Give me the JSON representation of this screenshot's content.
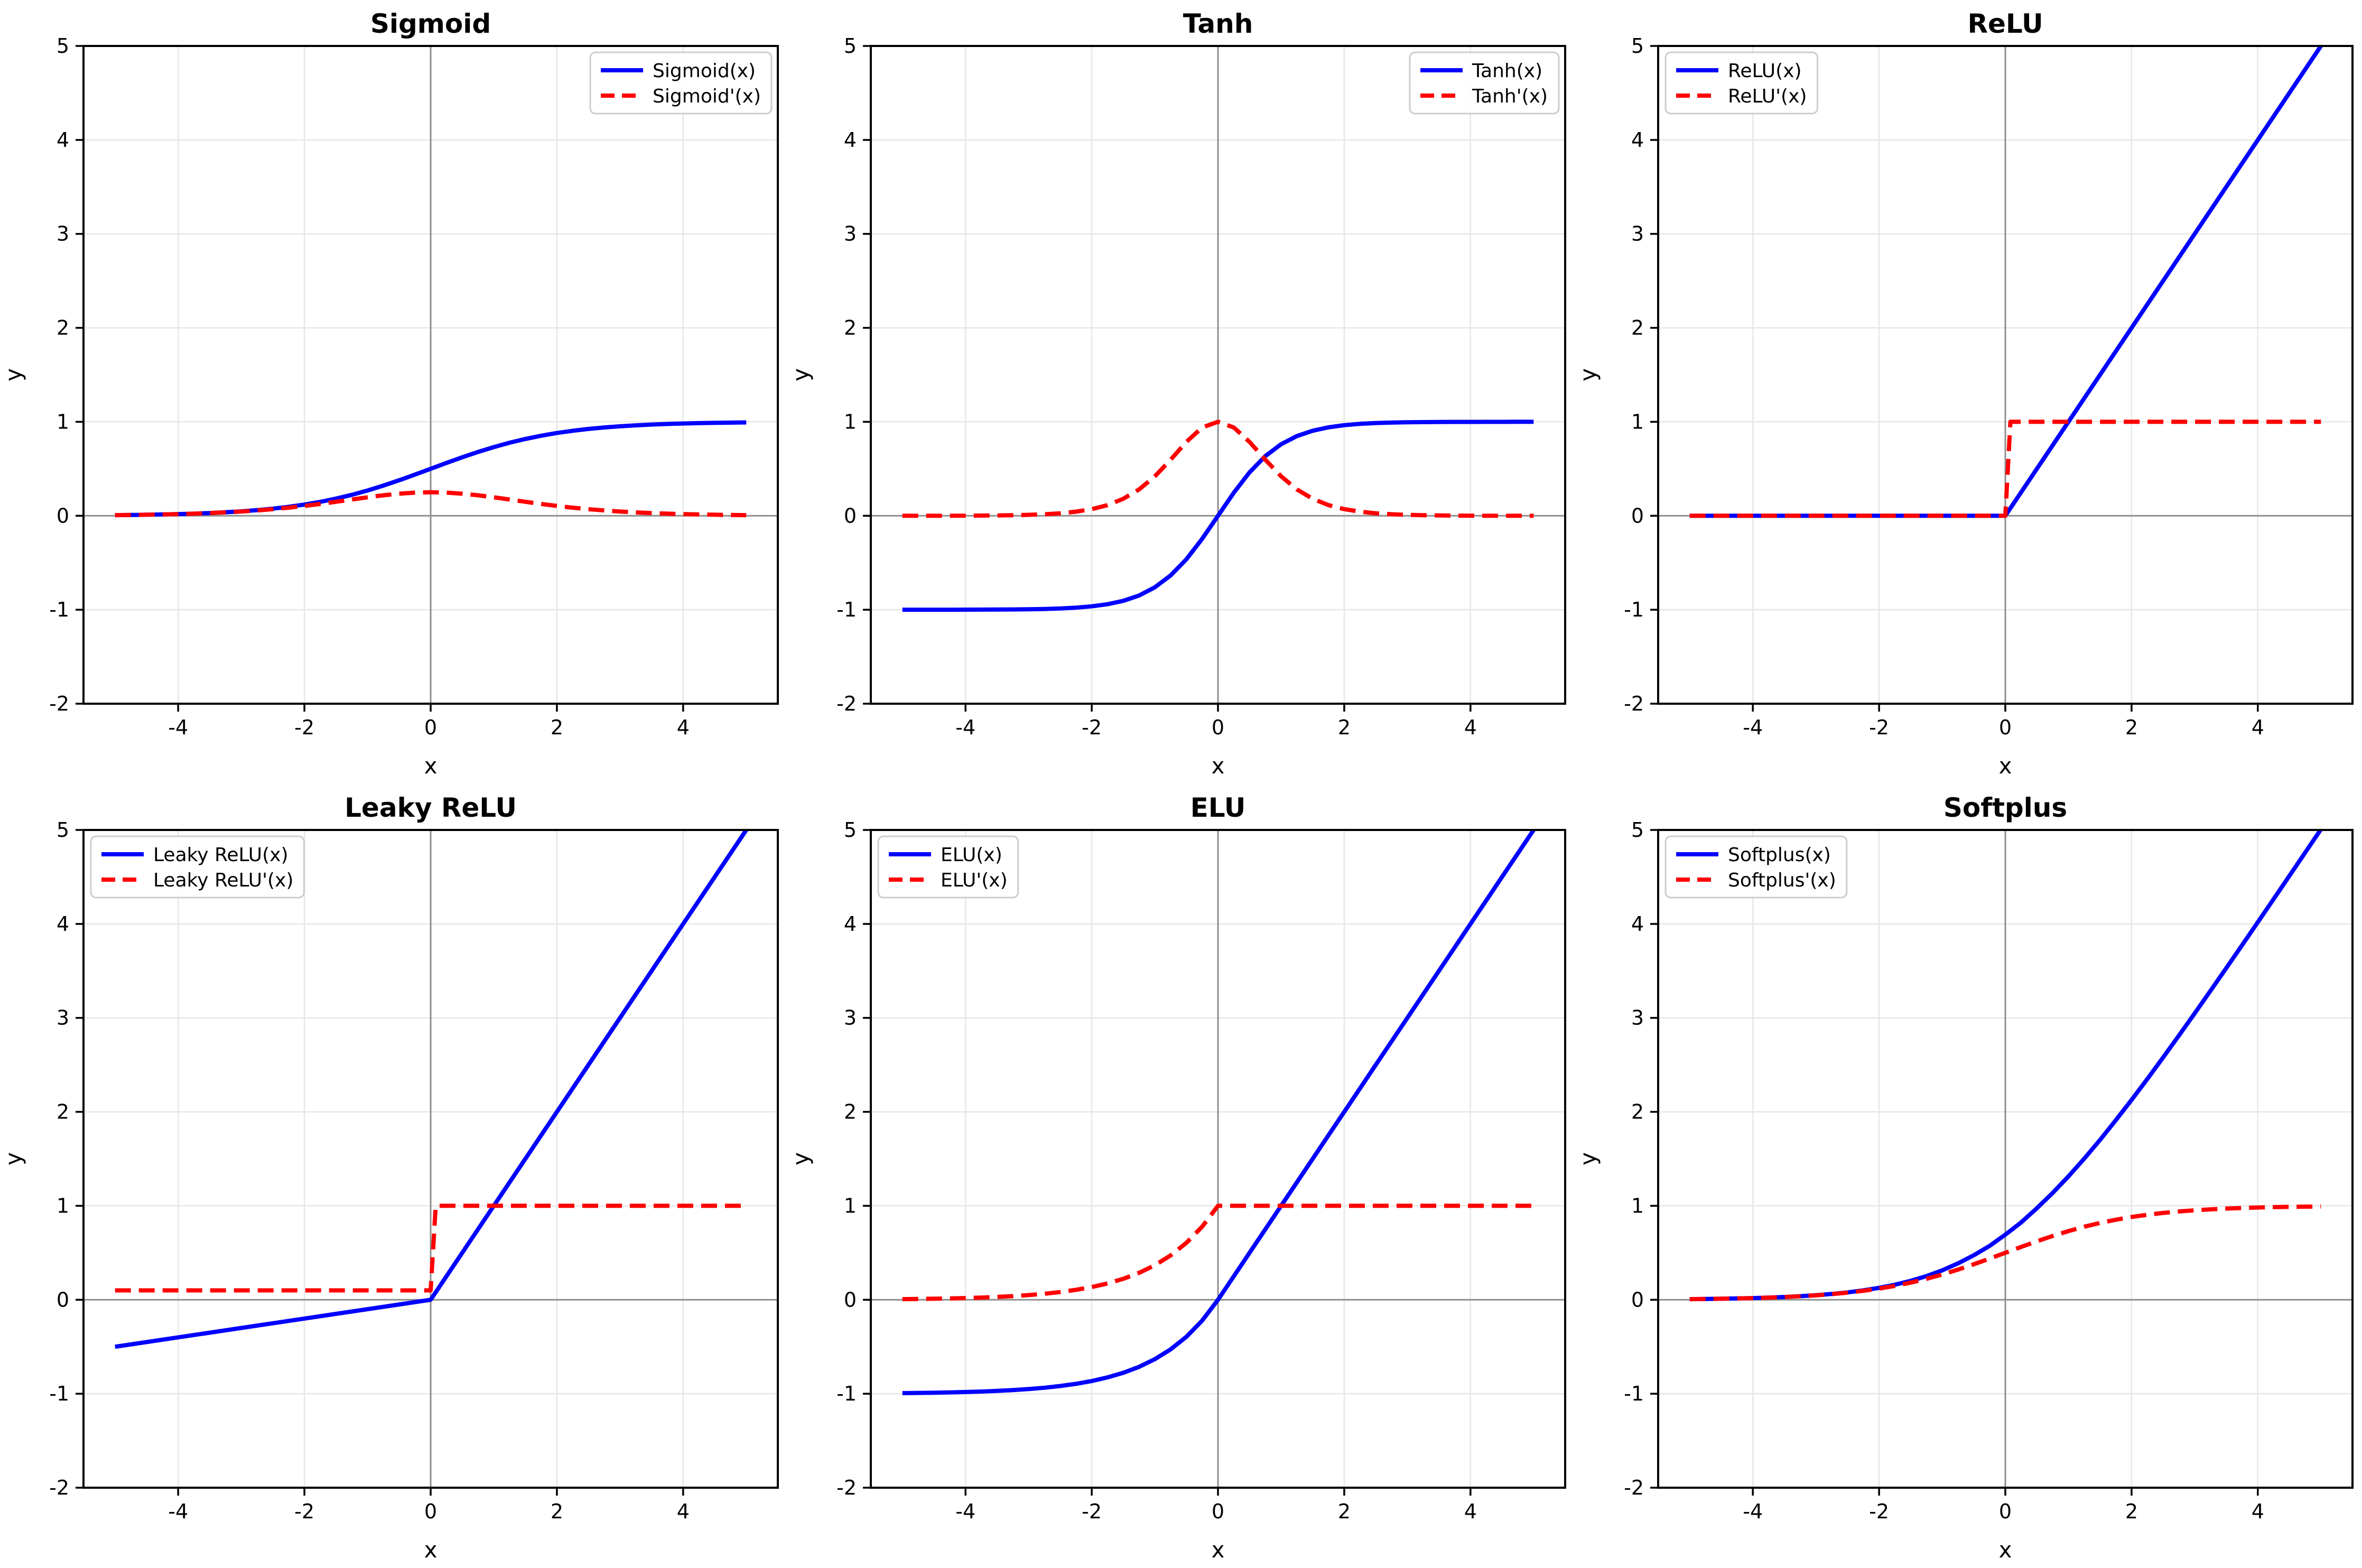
{
  "figure": {
    "background": "#ffffff",
    "rows": 2,
    "cols": 3
  },
  "chart_data": [
    {
      "type": "line",
      "id": "sigmoid",
      "title": "Sigmoid",
      "xlabel": "x",
      "ylabel": "y",
      "xlim": [
        -5.5,
        5.5
      ],
      "ylim": [
        -2,
        5
      ],
      "xticks": [
        -4,
        -2,
        0,
        2,
        4
      ],
      "yticks": [
        -2,
        -1,
        0,
        1,
        2,
        3,
        4,
        5
      ],
      "grid": true,
      "zero_lines": true,
      "legend_loc": "upper right",
      "series": [
        {
          "name": "Sigmoid(x)",
          "color": "#0000ff",
          "style": "solid",
          "x_linspace": [
            -5,
            5,
            41
          ],
          "y": [
            0.0067,
            0.0086,
            0.011,
            0.0141,
            0.018,
            0.023,
            0.0293,
            0.0374,
            0.0474,
            0.0601,
            0.0759,
            0.0953,
            0.1192,
            0.148,
            0.1824,
            0.2227,
            0.2689,
            0.3208,
            0.3775,
            0.4378,
            0.5,
            0.5622,
            0.6225,
            0.6792,
            0.7311,
            0.7773,
            0.8176,
            0.852,
            0.8808,
            0.9047,
            0.9241,
            0.9399,
            0.9526,
            0.9626,
            0.9707,
            0.977,
            0.982,
            0.9859,
            0.989,
            0.9914,
            0.9933
          ]
        },
        {
          "name": "Sigmoid'(x)",
          "color": "#ff0000",
          "style": "dashed",
          "x_linspace": [
            -5,
            5,
            41
          ],
          "y": [
            0.0066,
            0.0085,
            0.0109,
            0.0139,
            0.0177,
            0.0225,
            0.0285,
            0.036,
            0.0452,
            0.0565,
            0.0701,
            0.0862,
            0.105,
            0.1261,
            0.1491,
            0.1731,
            0.1966,
            0.2179,
            0.235,
            0.2461,
            0.25,
            0.2461,
            0.235,
            0.2179,
            0.1966,
            0.1731,
            0.1491,
            0.1261,
            0.105,
            0.0862,
            0.0701,
            0.0565,
            0.0452,
            0.036,
            0.0285,
            0.0225,
            0.0177,
            0.0139,
            0.0109,
            0.0085,
            0.0066
          ]
        }
      ]
    },
    {
      "type": "line",
      "id": "tanh",
      "title": "Tanh",
      "xlabel": "x",
      "ylabel": "y",
      "xlim": [
        -5.5,
        5.5
      ],
      "ylim": [
        -2,
        5
      ],
      "xticks": [
        -4,
        -2,
        0,
        2,
        4
      ],
      "yticks": [
        -2,
        -1,
        0,
        1,
        2,
        3,
        4,
        5
      ],
      "grid": true,
      "zero_lines": true,
      "legend_loc": "upper right",
      "series": [
        {
          "name": "Tanh(x)",
          "color": "#0000ff",
          "style": "solid",
          "x_linspace": [
            -5,
            5,
            41
          ],
          "y": [
            -0.9999,
            -0.9999,
            -0.9998,
            -0.9997,
            -0.9993,
            -0.9989,
            -0.9982,
            -0.997,
            -0.9951,
            -0.9919,
            -0.9866,
            -0.978,
            -0.964,
            -0.9414,
            -0.9051,
            -0.8483,
            -0.7616,
            -0.6351,
            -0.4621,
            -0.2449,
            0,
            0.2449,
            0.4621,
            0.6351,
            0.7616,
            0.8483,
            0.9051,
            0.9414,
            0.964,
            0.978,
            0.9866,
            0.9919,
            0.9951,
            0.997,
            0.9982,
            0.9989,
            0.9993,
            0.9997,
            0.9998,
            0.9999,
            0.9999
          ]
        },
        {
          "name": "Tanh'(x)",
          "color": "#ff0000",
          "style": "dashed",
          "x_linspace": [
            -5,
            5,
            41
          ],
          "y": [
            0.0002,
            0.0003,
            0.0004,
            0.0007,
            0.0013,
            0.0022,
            0.0037,
            0.006,
            0.0099,
            0.0162,
            0.0266,
            0.0435,
            0.0707,
            0.1137,
            0.1807,
            0.2804,
            0.42,
            0.5966,
            0.7864,
            0.94,
            1,
            0.94,
            0.7864,
            0.5966,
            0.42,
            0.2804,
            0.1807,
            0.1137,
            0.0707,
            0.0435,
            0.0266,
            0.0162,
            0.0099,
            0.006,
            0.0037,
            0.0022,
            0.0013,
            0.0007,
            0.0004,
            0.0003,
            0.0002
          ]
        }
      ]
    },
    {
      "type": "line",
      "id": "relu",
      "title": "ReLU",
      "xlabel": "x",
      "ylabel": "y",
      "xlim": [
        -5.5,
        5.5
      ],
      "ylim": [
        -2,
        5
      ],
      "xticks": [
        -4,
        -2,
        0,
        2,
        4
      ],
      "yticks": [
        -2,
        -1,
        0,
        1,
        2,
        3,
        4,
        5
      ],
      "grid": true,
      "zero_lines": true,
      "legend_loc": "upper left",
      "series": [
        {
          "name": "ReLU(x)",
          "color": "#0000ff",
          "style": "solid",
          "x": [
            -5,
            0,
            5
          ],
          "y": [
            0,
            0,
            5
          ]
        },
        {
          "name": "ReLU'(x)",
          "color": "#ff0000",
          "style": "dashed",
          "x": [
            -5,
            0,
            0.08,
            5
          ],
          "y": [
            0,
            0,
            1,
            1
          ]
        }
      ]
    },
    {
      "type": "line",
      "id": "leaky-relu",
      "title": "Leaky ReLU",
      "xlabel": "x",
      "ylabel": "y",
      "xlim": [
        -5.5,
        5.5
      ],
      "ylim": [
        -2,
        5
      ],
      "xticks": [
        -4,
        -2,
        0,
        2,
        4
      ],
      "yticks": [
        -2,
        -1,
        0,
        1,
        2,
        3,
        4,
        5
      ],
      "grid": true,
      "zero_lines": true,
      "legend_loc": "upper left",
      "series": [
        {
          "name": "Leaky ReLU(x)",
          "color": "#0000ff",
          "style": "solid",
          "x": [
            -5,
            0,
            5
          ],
          "y": [
            -0.5,
            0,
            5
          ]
        },
        {
          "name": "Leaky ReLU'(x)",
          "color": "#ff0000",
          "style": "dashed",
          "x": [
            -5,
            0,
            0.08,
            5
          ],
          "y": [
            0.1,
            0.1,
            1,
            1
          ]
        }
      ]
    },
    {
      "type": "line",
      "id": "elu",
      "title": "ELU",
      "xlabel": "x",
      "ylabel": "y",
      "xlim": [
        -5.5,
        5.5
      ],
      "ylim": [
        -2,
        5
      ],
      "xticks": [
        -4,
        -2,
        0,
        2,
        4
      ],
      "yticks": [
        -2,
        -1,
        0,
        1,
        2,
        3,
        4,
        5
      ],
      "grid": true,
      "zero_lines": true,
      "legend_loc": "upper left",
      "series": [
        {
          "name": "ELU(x)",
          "color": "#0000ff",
          "style": "solid",
          "x_linspace": [
            -5,
            5,
            41
          ],
          "y": [
            -0.9933,
            -0.9914,
            -0.9889,
            -0.9857,
            -0.9817,
            -0.9765,
            -0.9698,
            -0.9612,
            -0.9502,
            -0.9361,
            -0.9179,
            -0.8946,
            -0.8647,
            -0.8262,
            -0.7769,
            -0.7135,
            -0.6321,
            -0.5276,
            -0.3935,
            -0.2212,
            0,
            0.25,
            0.5,
            0.75,
            1,
            1.25,
            1.5,
            1.75,
            2,
            2.25,
            2.5,
            2.75,
            3,
            3.25,
            3.5,
            3.75,
            4,
            4.25,
            4.5,
            4.75,
            5
          ]
        },
        {
          "name": "ELU'(x)",
          "color": "#ff0000",
          "style": "dashed",
          "x_linspace": [
            -5,
            5,
            41
          ],
          "y": [
            0.0067,
            0.0087,
            0.0111,
            0.0143,
            0.0183,
            0.0235,
            0.0302,
            0.0388,
            0.0498,
            0.0639,
            0.0821,
            0.1054,
            0.1353,
            0.1738,
            0.2231,
            0.2865,
            0.3679,
            0.4724,
            0.6065,
            0.7788,
            1,
            1,
            1,
            1,
            1,
            1,
            1,
            1,
            1,
            1,
            1,
            1,
            1,
            1,
            1,
            1,
            1,
            1,
            1,
            1,
            1
          ]
        }
      ]
    },
    {
      "type": "line",
      "id": "softplus",
      "title": "Softplus",
      "xlabel": "x",
      "ylabel": "y",
      "xlim": [
        -5.5,
        5.5
      ],
      "ylim": [
        -2,
        5
      ],
      "xticks": [
        -4,
        -2,
        0,
        2,
        4
      ],
      "yticks": [
        -2,
        -1,
        0,
        1,
        2,
        3,
        4,
        5
      ],
      "grid": true,
      "zero_lines": true,
      "legend_loc": "upper left",
      "series": [
        {
          "name": "Softplus(x)",
          "color": "#0000ff",
          "style": "solid",
          "x_linspace": [
            -5,
            5,
            41
          ],
          "y": [
            0.0067,
            0.0086,
            0.0111,
            0.0142,
            0.0181,
            0.0233,
            0.0298,
            0.0381,
            0.0486,
            0.0619,
            0.0789,
            0.1002,
            0.1269,
            0.1602,
            0.2014,
            0.2517,
            0.3133,
            0.3873,
            0.4741,
            0.5731,
            0.6931,
            0.8231,
            0.9741,
            1.1373,
            1.3133,
            1.5017,
            1.7014,
            1.9102,
            2.1269,
            2.3502,
            2.5789,
            2.8119,
            3.0486,
            3.2881,
            3.5298,
            3.7733,
            4.0181,
            4.2642,
            4.5111,
            4.7586,
            5.0067
          ]
        },
        {
          "name": "Softplus'(x)",
          "color": "#ff0000",
          "style": "dashed",
          "x_linspace": [
            -5,
            5,
            41
          ],
          "y": [
            0.0067,
            0.0086,
            0.011,
            0.0141,
            0.018,
            0.023,
            0.0293,
            0.0374,
            0.0474,
            0.0601,
            0.0759,
            0.0953,
            0.1192,
            0.148,
            0.1824,
            0.2227,
            0.2689,
            0.3208,
            0.3775,
            0.4378,
            0.5,
            0.5622,
            0.6225,
            0.6792,
            0.7311,
            0.7773,
            0.8176,
            0.852,
            0.8808,
            0.9047,
            0.9241,
            0.9399,
            0.9526,
            0.9626,
            0.9707,
            0.977,
            0.982,
            0.9859,
            0.989,
            0.9914,
            0.9933
          ]
        }
      ]
    }
  ]
}
